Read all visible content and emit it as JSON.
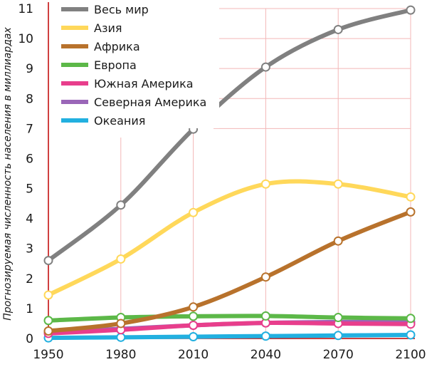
{
  "chart_data": {
    "type": "line",
    "title": "",
    "xlabel": "",
    "ylabel": "Прогнозируемая численность населения в миллиардах",
    "x": [
      1950,
      1980,
      2010,
      2040,
      2070,
      2100
    ],
    "xlim": [
      1950,
      2100
    ],
    "ylim": [
      0,
      11
    ],
    "yticks": [
      0,
      1,
      2,
      3,
      4,
      5,
      6,
      7,
      8,
      9,
      10,
      11
    ],
    "grid": "vertical lines at x ticks; horizontal lines in the upper-right area",
    "grid_color": "#f3b7b7",
    "axis_color": "#c00000",
    "legend_position": "top-left",
    "series": [
      {
        "name": "Весь мир",
        "color": "#808080",
        "values": [
          2.6,
          4.45,
          6.98,
          9.05,
          10.3,
          10.95
        ]
      },
      {
        "name": "Азия",
        "color": "#ffd85a",
        "values": [
          1.45,
          2.65,
          4.2,
          5.15,
          5.15,
          4.72
        ]
      },
      {
        "name": "Африка",
        "color": "#b8722c",
        "values": [
          0.25,
          0.5,
          1.05,
          2.05,
          3.25,
          4.22
        ]
      },
      {
        "name": "Европа",
        "color": "#5cb848",
        "values": [
          0.6,
          0.7,
          0.74,
          0.75,
          0.7,
          0.67
        ]
      },
      {
        "name": "Южная Америка",
        "color": "#e83e8c",
        "values": [
          0.17,
          0.29,
          0.44,
          0.52,
          0.5,
          0.48
        ]
      },
      {
        "name": "Северная Америка",
        "color": "#9a66b8",
        "values": [
          0.22,
          0.32,
          0.44,
          0.52,
          0.55,
          0.55
        ]
      },
      {
        "name": "Океания",
        "color": "#22b0e0",
        "values": [
          0.02,
          0.04,
          0.06,
          0.08,
          0.1,
          0.12
        ]
      }
    ]
  }
}
